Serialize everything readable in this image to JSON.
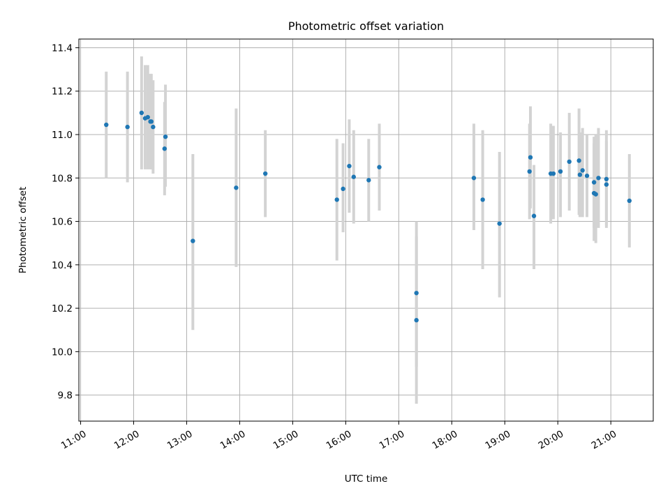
{
  "chart_data": {
    "type": "scatter",
    "title": "Photometric offset variation",
    "xlabel": "UTC time",
    "ylabel": "Photometric offset",
    "grid": true,
    "xlim": [
      "10:58",
      "21:48"
    ],
    "ylim": [
      9.68,
      11.44
    ],
    "x_ticks": [
      "11:00",
      "12:00",
      "13:00",
      "14:00",
      "15:00",
      "16:00",
      "17:00",
      "18:00",
      "19:00",
      "20:00",
      "21:00"
    ],
    "y_ticks": [
      9.8,
      10.0,
      10.2,
      10.4,
      10.6,
      10.8,
      11.0,
      11.2,
      11.4
    ],
    "colors": {
      "marker": "#1f77b4",
      "errorbar": "#d3d3d3"
    },
    "points": [
      {
        "x": "11:29",
        "y": 11.045,
        "lo": 10.8,
        "hi": 11.29
      },
      {
        "x": "11:53",
        "y": 11.035,
        "lo": 10.78,
        "hi": 11.29
      },
      {
        "x": "12:09",
        "y": 11.1,
        "lo": 10.84,
        "hi": 11.36
      },
      {
        "x": "12:13",
        "y": 11.075,
        "lo": 10.84,
        "hi": 11.32
      },
      {
        "x": "12:16",
        "y": 11.08,
        "lo": 10.84,
        "hi": 11.32
      },
      {
        "x": "12:19",
        "y": 11.06,
        "lo": 10.84,
        "hi": 11.28
      },
      {
        "x": "12:20",
        "y": 11.06,
        "lo": 10.84,
        "hi": 11.28
      },
      {
        "x": "12:22",
        "y": 11.035,
        "lo": 10.82,
        "hi": 11.25
      },
      {
        "x": "12:35",
        "y": 10.935,
        "lo": 10.72,
        "hi": 11.15
      },
      {
        "x": "12:36",
        "y": 10.99,
        "lo": 10.76,
        "hi": 11.23
      },
      {
        "x": "13:07",
        "y": 10.51,
        "lo": 10.1,
        "hi": 10.91
      },
      {
        "x": "13:56",
        "y": 10.755,
        "lo": 10.39,
        "hi": 11.12
      },
      {
        "x": "14:29",
        "y": 10.82,
        "lo": 10.62,
        "hi": 11.02
      },
      {
        "x": "15:50",
        "y": 10.7,
        "lo": 10.42,
        "hi": 10.98
      },
      {
        "x": "15:57",
        "y": 10.75,
        "lo": 10.55,
        "hi": 10.96
      },
      {
        "x": "16:04",
        "y": 10.855,
        "lo": 10.64,
        "hi": 11.07
      },
      {
        "x": "16:09",
        "y": 10.805,
        "lo": 10.59,
        "hi": 11.02
      },
      {
        "x": "16:26",
        "y": 10.79,
        "lo": 10.6,
        "hi": 10.98
      },
      {
        "x": "16:38",
        "y": 10.85,
        "lo": 10.65,
        "hi": 11.05
      },
      {
        "x": "17:20",
        "y": 10.27,
        "lo": 9.93,
        "hi": 10.6
      },
      {
        "x": "17:20",
        "y": 10.145,
        "lo": 9.76,
        "hi": 10.53
      },
      {
        "x": "18:25",
        "y": 10.8,
        "lo": 10.56,
        "hi": 11.05
      },
      {
        "x": "18:35",
        "y": 10.7,
        "lo": 10.38,
        "hi": 11.02
      },
      {
        "x": "18:54",
        "y": 10.59,
        "lo": 10.25,
        "hi": 10.92
      },
      {
        "x": "19:28",
        "y": 10.83,
        "lo": 10.61,
        "hi": 11.05
      },
      {
        "x": "19:29",
        "y": 10.895,
        "lo": 10.66,
        "hi": 11.13
      },
      {
        "x": "19:33",
        "y": 10.625,
        "lo": 10.38,
        "hi": 10.86
      },
      {
        "x": "19:52",
        "y": 10.82,
        "lo": 10.59,
        "hi": 11.05
      },
      {
        "x": "19:55",
        "y": 10.82,
        "lo": 10.61,
        "hi": 11.04
      },
      {
        "x": "20:03",
        "y": 10.83,
        "lo": 10.62,
        "hi": 11.01
      },
      {
        "x": "20:13",
        "y": 10.875,
        "lo": 10.65,
        "hi": 11.1
      },
      {
        "x": "20:24",
        "y": 10.88,
        "lo": 10.63,
        "hi": 11.12
      },
      {
        "x": "20:25",
        "y": 10.815,
        "lo": 10.62,
        "hi": 11.01
      },
      {
        "x": "20:28",
        "y": 10.835,
        "lo": 10.62,
        "hi": 11.03
      },
      {
        "x": "20:33",
        "y": 10.81,
        "lo": 10.62,
        "hi": 11.0
      },
      {
        "x": "20:41",
        "y": 10.78,
        "lo": 10.57,
        "hi": 10.99
      },
      {
        "x": "20:41",
        "y": 10.73,
        "lo": 10.51,
        "hi": 10.96
      },
      {
        "x": "20:43",
        "y": 10.725,
        "lo": 10.5,
        "hi": 11.0
      },
      {
        "x": "20:46",
        "y": 10.8,
        "lo": 10.57,
        "hi": 11.03
      },
      {
        "x": "20:55",
        "y": 10.795,
        "lo": 10.58,
        "hi": 11.02
      },
      {
        "x": "20:55",
        "y": 10.77,
        "lo": 10.57,
        "hi": 10.97
      },
      {
        "x": "21:21",
        "y": 10.695,
        "lo": 10.48,
        "hi": 10.91
      }
    ]
  }
}
